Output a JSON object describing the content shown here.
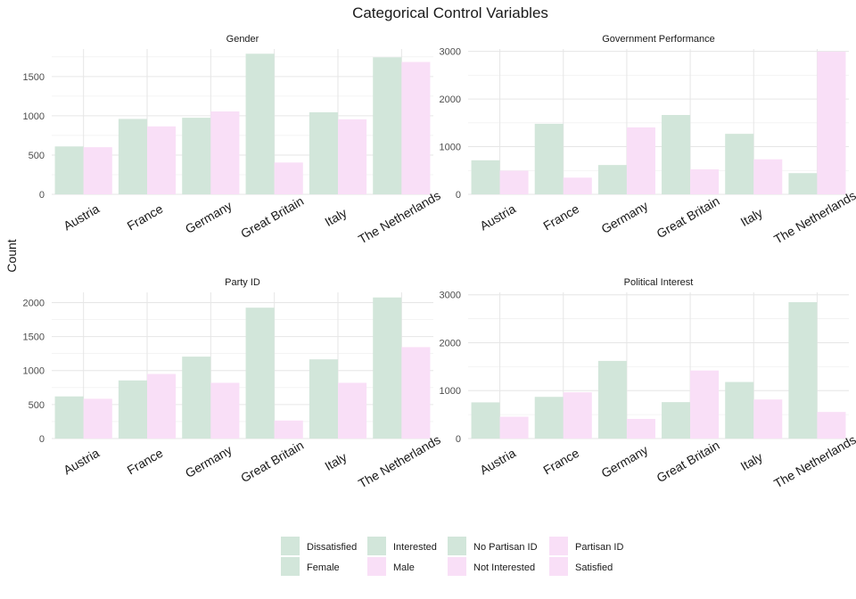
{
  "figure": {
    "title": "Categorical Control Variables",
    "ylabel": "Count"
  },
  "colors": {
    "green": "#d2e6da",
    "pink": "#f9dff7"
  },
  "chart_data": [
    {
      "type": "bar",
      "title": "Gender",
      "categories": [
        "Austria",
        "France",
        "Germany",
        "Great Britain",
        "Italy",
        "The Netherlands"
      ],
      "series": [
        {
          "name": "Female",
          "color": "green",
          "values": [
            610,
            960,
            975,
            1790,
            1045,
            1745
          ]
        },
        {
          "name": "Male",
          "color": "pink",
          "values": [
            600,
            865,
            1055,
            405,
            955,
            1685
          ]
        }
      ],
      "ylim": [
        0,
        1850
      ],
      "yticks": [
        0,
        500,
        1000,
        1500
      ]
    },
    {
      "type": "bar",
      "title": "Government Performance",
      "categories": [
        "Austria",
        "France",
        "Germany",
        "Great Britain",
        "Italy",
        "The Netherlands"
      ],
      "series": [
        {
          "name": "Dissatisfied",
          "color": "green",
          "values": [
            715,
            1480,
            615,
            1665,
            1270,
            445
          ]
        },
        {
          "name": "Satisfied",
          "color": "pink",
          "values": [
            495,
            350,
            1405,
            525,
            735,
            2995
          ]
        }
      ],
      "ylim": [
        0,
        3050
      ],
      "yticks": [
        0,
        1000,
        2000,
        3000
      ]
    },
    {
      "type": "bar",
      "title": "Party ID",
      "categories": [
        "Austria",
        "France",
        "Germany",
        "Great Britain",
        "Italy",
        "The Netherlands"
      ],
      "series": [
        {
          "name": "No Partisan ID",
          "color": "green",
          "values": [
            620,
            855,
            1205,
            1925,
            1165,
            2075
          ]
        },
        {
          "name": "Partisan ID",
          "color": "pink",
          "values": [
            585,
            950,
            820,
            265,
            820,
            1345
          ]
        }
      ],
      "ylim": [
        0,
        2150
      ],
      "yticks": [
        0,
        500,
        1000,
        1500,
        2000
      ]
    },
    {
      "type": "bar",
      "title": "Political Interest",
      "categories": [
        "Austria",
        "France",
        "Germany",
        "Great Britain",
        "Italy",
        "The Netherlands"
      ],
      "series": [
        {
          "name": "Interested",
          "color": "green",
          "values": [
            755,
            870,
            1620,
            760,
            1180,
            2845
          ]
        },
        {
          "name": "Not Interested",
          "color": "pink",
          "values": [
            455,
            965,
            410,
            1420,
            815,
            555
          ]
        }
      ],
      "ylim": [
        0,
        3050
      ],
      "yticks": [
        0,
        1000,
        2000,
        3000
      ]
    }
  ],
  "legend": {
    "position": "bottom",
    "items": [
      {
        "label": "Dissatisfied",
        "color": "green"
      },
      {
        "label": "Female",
        "color": "green"
      },
      {
        "label": "Interested",
        "color": "green"
      },
      {
        "label": "Male",
        "color": "pink"
      },
      {
        "label": "No Partisan ID",
        "color": "green"
      },
      {
        "label": "Not Interested",
        "color": "pink"
      },
      {
        "label": "Partisan ID",
        "color": "pink"
      },
      {
        "label": "Satisfied",
        "color": "pink"
      }
    ]
  }
}
